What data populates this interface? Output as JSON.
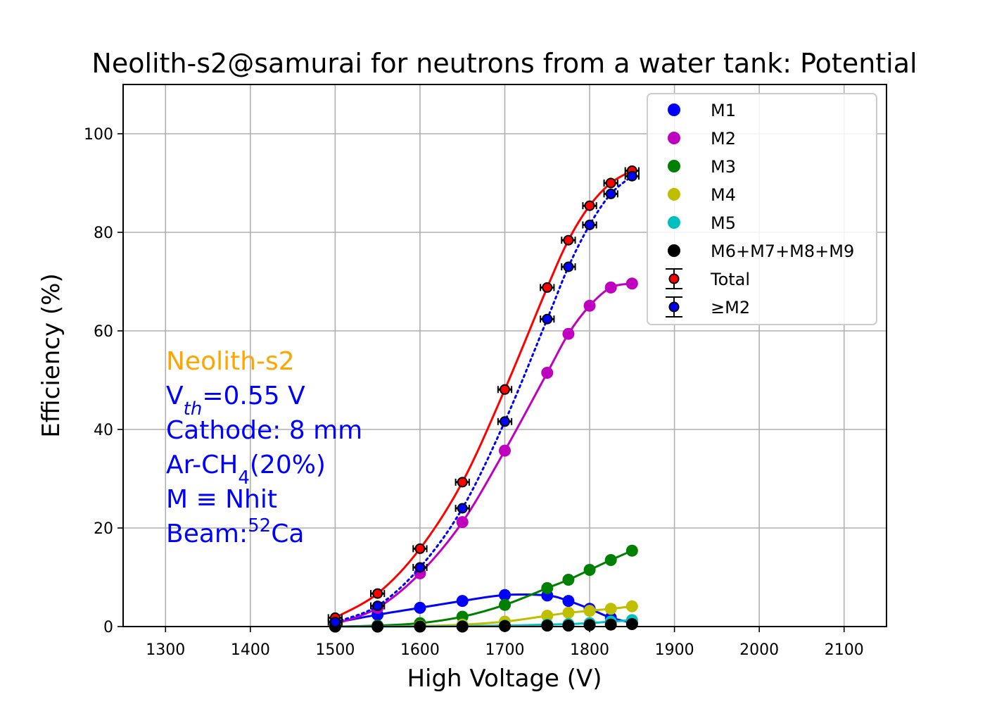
{
  "chart_data": {
    "type": "line",
    "title": "Neolith-s2@samurai for neutrons from a water tank: Potential",
    "xlabel": "High Voltage (V)",
    "ylabel": "Efficiency (%)",
    "xlim": [
      1250,
      2150
    ],
    "ylim": [
      0,
      110
    ],
    "xticks": [
      1300,
      1400,
      1500,
      1600,
      1700,
      1800,
      1900,
      2000,
      2100
    ],
    "yticks": [
      0,
      20,
      40,
      60,
      80,
      100
    ],
    "grid": true,
    "legend_position": "top-right",
    "x": [
      1500,
      1550,
      1600,
      1650,
      1700,
      1750,
      1775,
      1800,
      1825,
      1850
    ],
    "series": [
      {
        "name": "M1",
        "color": "#0000ff",
        "marker": "circle",
        "line": "solid",
        "values": [
          0.8,
          2.4,
          3.8,
          5.2,
          6.4,
          6.3,
          5.2,
          3.6,
          1.8,
          0.8
        ]
      },
      {
        "name": "M2",
        "color": "#bf00bf",
        "marker": "circle",
        "line": "solid",
        "values": [
          0.5,
          3.8,
          10.8,
          21.2,
          35.7,
          51.5,
          59.4,
          65.1,
          68.8,
          69.6
        ]
      },
      {
        "name": "M3",
        "color": "#008000",
        "marker": "circle",
        "line": "solid",
        "values": [
          0.0,
          0.2,
          0.7,
          2.0,
          4.4,
          7.8,
          9.5,
          11.5,
          13.5,
          15.4
        ]
      },
      {
        "name": "M4",
        "color": "#bfbf00",
        "marker": "circle",
        "line": "solid",
        "values": [
          0.0,
          0.0,
          0.1,
          0.4,
          1.0,
          2.2,
          2.8,
          3.2,
          3.6,
          4.1
        ]
      },
      {
        "name": "M5",
        "color": "#00bfbf",
        "marker": "circle",
        "line": "solid",
        "values": [
          0.0,
          0.0,
          0.0,
          0.1,
          0.2,
          0.4,
          0.5,
          0.7,
          1.0,
          1.3
        ]
      },
      {
        "name": "M6+M7+M8+M9",
        "color": "#000000",
        "marker": "circle",
        "line": "none",
        "values": [
          0.0,
          0.0,
          0.0,
          0.0,
          0.1,
          0.2,
          0.2,
          0.3,
          0.4,
          0.5
        ]
      },
      {
        "name": "Total",
        "color": "#ff0000",
        "marker": "circle-errorbar",
        "line": "solid",
        "values": [
          1.8,
          6.7,
          15.8,
          29.3,
          48.1,
          68.8,
          78.4,
          85.4,
          90.0,
          92.5
        ],
        "xerr": 8
      },
      {
        "name": "≥M2",
        "color": "#0000ff",
        "marker": "circle-errorbar",
        "line": "dotted",
        "values": [
          0.9,
          4.2,
          12.0,
          24.0,
          41.6,
          62.4,
          73.0,
          81.5,
          87.8,
          91.4
        ],
        "xerr": 8
      }
    ],
    "annotations": [
      {
        "text": "Neolith-s2",
        "color": "#ffa500"
      },
      {
        "base": "V",
        "sub": "th",
        "rest": "=0.55 V",
        "color": "#0000ff"
      },
      {
        "text": "Cathode: 8 mm",
        "color": "#0000ff"
      },
      {
        "base": "Ar-CH",
        "sub": "4",
        "rest": "(20%)",
        "color": "#0000ff"
      },
      {
        "text": "M ≡ Nhit",
        "color": "#0000ff"
      },
      {
        "base": "Beam:",
        "sup": "52",
        "rest": "Ca",
        "color": "#0000ff"
      }
    ]
  }
}
